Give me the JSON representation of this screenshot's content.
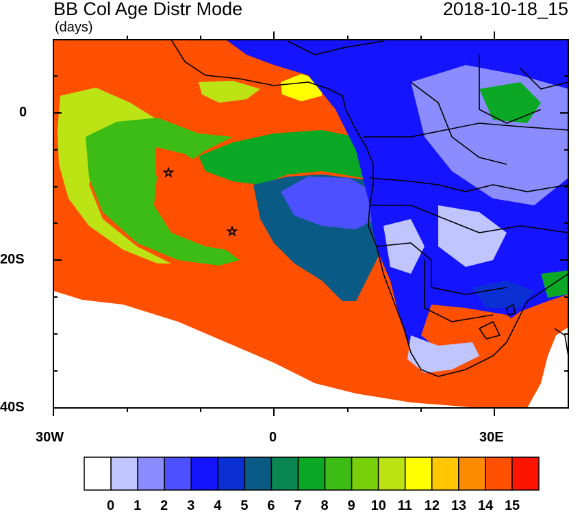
{
  "title": "BB Col Age Distr Mode",
  "units": "(days)",
  "datetime": "2018-10-18_15",
  "axes": {
    "lat_labels": [
      "0",
      "20S",
      "40S"
    ],
    "lon_labels": [
      "30W",
      "0",
      "30E"
    ]
  },
  "colorbar": {
    "labels": [
      "0",
      "1",
      "2",
      "3",
      "4",
      "5",
      "6",
      "7",
      "8",
      "9",
      "10",
      "11",
      "12",
      "13",
      "14",
      "15"
    ],
    "colors": [
      "#ffffff",
      "#c0c4ff",
      "#8a8cff",
      "#4c50ff",
      "#1414ff",
      "#0a30d4",
      "#0a5a86",
      "#0a8650",
      "#0aa824",
      "#3cbc14",
      "#78d00a",
      "#bce414",
      "#ffff00",
      "#ffc800",
      "#ff8c00",
      "#ff5000",
      "#ff1400"
    ]
  },
  "colors": {
    "ocean_age_14_15": "#ff5000",
    "background": "#ffffff"
  },
  "markers": [
    "star-marker-1",
    "star-marker-2"
  ]
}
